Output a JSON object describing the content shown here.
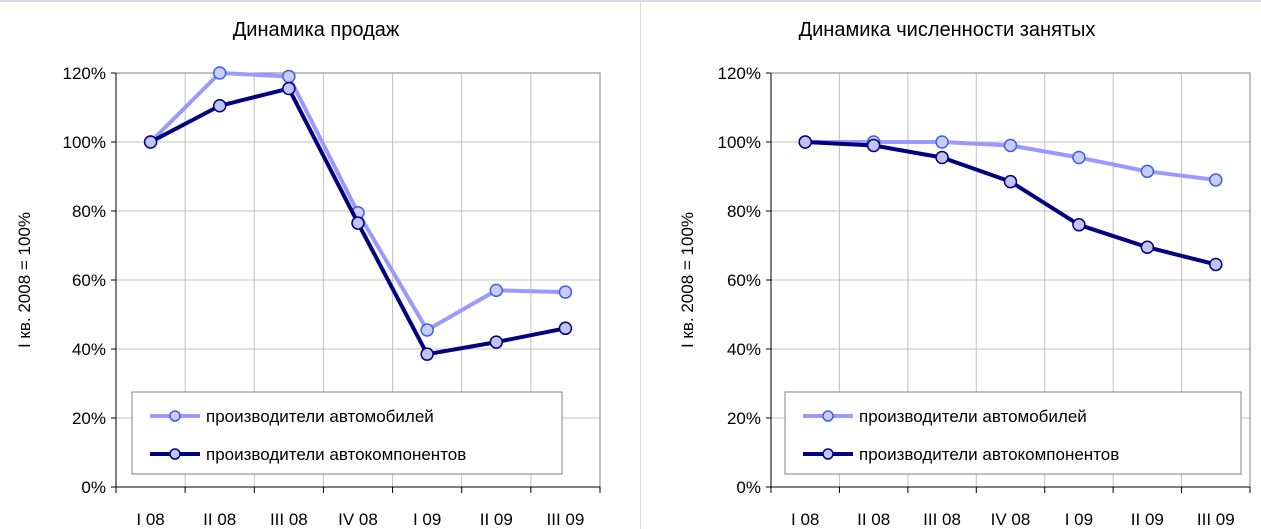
{
  "chart_data": [
    {
      "type": "line",
      "title": "Динамика продаж",
      "ylabel": "I кв. 2008 = 100%",
      "xlabel": "",
      "categories": [
        "I 08",
        "II 08",
        "III 08",
        "IV 08",
        "I 09",
        "II 09",
        "III 09"
      ],
      "ylim": [
        0,
        120
      ],
      "yticks": [
        "0%",
        "20%",
        "40%",
        "60%",
        "80%",
        "100%",
        "120%"
      ],
      "grid": true,
      "legend": "bottom",
      "series": [
        {
          "name": "производители автомобилей",
          "color": "#9999ff",
          "values": [
            100,
            120,
            119,
            79.5,
            45.5,
            57,
            56.5
          ]
        },
        {
          "name": "производители автокомпонентов",
          "color": "#000080",
          "values": [
            100,
            110.5,
            115.5,
            76.5,
            38.5,
            42,
            46
          ]
        }
      ]
    },
    {
      "type": "line",
      "title": "Динамика численности занятых",
      "ylabel": "I кв. 2008 = 100%",
      "xlabel": "",
      "categories": [
        "I 08",
        "II 08",
        "III 08",
        "IV 08",
        "I 09",
        "II 09",
        "III 09"
      ],
      "ylim": [
        0,
        120
      ],
      "yticks": [
        "0%",
        "20%",
        "40%",
        "60%",
        "80%",
        "100%",
        "120%"
      ],
      "grid": true,
      "legend": "bottom",
      "series": [
        {
          "name": "производители автомобилей",
          "color": "#9999ff",
          "values": [
            100,
            100,
            100,
            99,
            95.5,
            91.5,
            89
          ]
        },
        {
          "name": "производители автокомпонентов",
          "color": "#000080",
          "values": [
            100,
            99,
            95.5,
            88.5,
            76,
            69.5,
            64.5
          ]
        }
      ]
    }
  ]
}
